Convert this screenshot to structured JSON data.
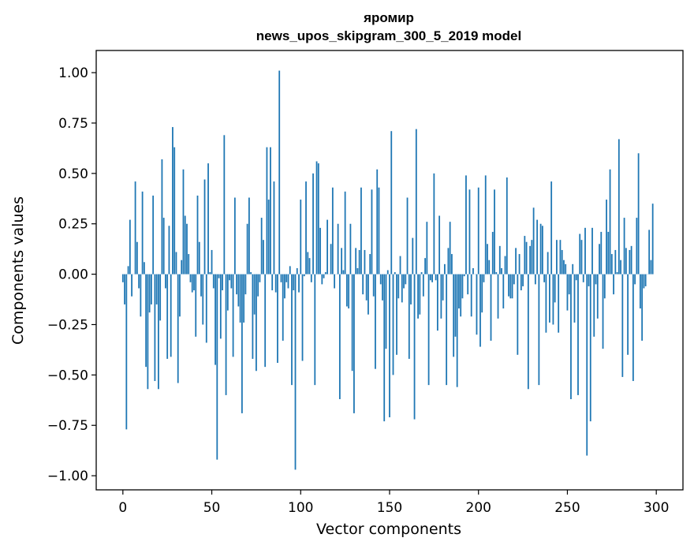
{
  "chart_data": {
    "type": "bar",
    "title": "яромир",
    "subtitle": "news_upos_skipgram_300_5_2019 model",
    "xlabel": "Vector components",
    "ylabel": "Components values",
    "xlim": [
      -15,
      315
    ],
    "ylim": [
      -1.07,
      1.11
    ],
    "xticks": [
      0,
      50,
      100,
      150,
      200,
      250,
      300
    ],
    "yticks": [
      -1.0,
      -0.75,
      -0.5,
      -0.25,
      0.0,
      0.25,
      0.5,
      0.75,
      1.0
    ],
    "ytick_labels": [
      "−1.00",
      "−0.75",
      "−0.50",
      "−0.25",
      "0.00",
      "0.25",
      "0.50",
      "0.75",
      "1.00"
    ],
    "xtick_labels": [
      "0",
      "50",
      "100",
      "150",
      "200",
      "250",
      "300"
    ],
    "bar_color": "#1f77b4",
    "grid": false,
    "values": [
      -0.04,
      -0.15,
      -0.77,
      0.04,
      0.27,
      -0.11,
      0.0,
      0.46,
      0.16,
      -0.07,
      -0.21,
      0.41,
      0.06,
      -0.46,
      -0.57,
      -0.19,
      -0.15,
      0.39,
      -0.53,
      -0.15,
      -0.57,
      -0.23,
      0.57,
      0.28,
      -0.07,
      -0.42,
      0.24,
      -0.41,
      0.73,
      0.63,
      0.11,
      -0.54,
      -0.21,
      0.07,
      0.52,
      0.29,
      0.25,
      0.1,
      -0.04,
      -0.09,
      -0.08,
      -0.31,
      0.39,
      0.16,
      -0.11,
      -0.25,
      0.47,
      -0.34,
      0.55,
      0.01,
      0.12,
      -0.07,
      -0.45,
      -0.92,
      -0.02,
      -0.32,
      -0.08,
      0.69,
      -0.6,
      -0.18,
      -0.03,
      -0.07,
      -0.41,
      0.38,
      -0.1,
      -0.16,
      -0.24,
      -0.69,
      -0.24,
      -0.1,
      0.25,
      0.38,
      0.01,
      -0.42,
      -0.2,
      -0.48,
      -0.11,
      -0.04,
      0.28,
      0.17,
      -0.46,
      0.63,
      0.37,
      0.63,
      -0.08,
      0.46,
      -0.09,
      -0.44,
      1.01,
      -0.04,
      -0.33,
      -0.12,
      -0.04,
      -0.07,
      0.04,
      -0.55,
      -0.08,
      -0.97,
      0.03,
      -0.09,
      0.37,
      -0.43,
      -0.01,
      0.46,
      0.11,
      0.08,
      -0.04,
      0.5,
      -0.55,
      0.56,
      0.55,
      0.23,
      -0.05,
      -0.02,
      0.01,
      0.27,
      0.0,
      0.15,
      0.43,
      -0.07,
      0.0,
      0.25,
      -0.62,
      0.13,
      0.02,
      0.41,
      -0.16,
      -0.17,
      0.25,
      -0.48,
      -0.69,
      0.13,
      0.03,
      0.12,
      0.43,
      -0.1,
      0.12,
      -0.13,
      -0.2,
      0.1,
      0.42,
      -0.11,
      -0.47,
      0.52,
      0.43,
      -0.05,
      -0.13,
      -0.73,
      -0.37,
      0.02,
      -0.71,
      0.71,
      -0.5,
      0.01,
      -0.4,
      -0.12,
      0.09,
      -0.14,
      -0.07,
      -0.05,
      0.38,
      -0.42,
      -0.15,
      0.18,
      -0.72,
      0.72,
      -0.22,
      -0.2,
      0.01,
      -0.11,
      0.08,
      0.26,
      -0.55,
      -0.03,
      -0.04,
      0.5,
      -0.03,
      -0.28,
      0.29,
      -0.22,
      -0.13,
      0.05,
      -0.55,
      0.13,
      0.26,
      0.1,
      -0.41,
      -0.31,
      -0.56,
      -0.17,
      -0.21,
      -0.12,
      -0.01,
      0.49,
      -0.1,
      0.42,
      -0.21,
      0.03,
      0.0,
      -0.3,
      0.43,
      -0.36,
      -0.19,
      -0.04,
      0.49,
      0.15,
      0.07,
      -0.33,
      0.21,
      0.42,
      0.01,
      -0.22,
      0.14,
      0.03,
      -0.17,
      0.09,
      0.48,
      -0.11,
      -0.12,
      -0.12,
      -0.05,
      0.13,
      -0.4,
      0.1,
      -0.08,
      -0.06,
      0.19,
      0.16,
      -0.57,
      0.14,
      0.17,
      0.33,
      -0.05,
      0.27,
      -0.55,
      0.25,
      0.24,
      -0.04,
      -0.29,
      0.11,
      -0.24,
      0.46,
      -0.25,
      -0.14,
      0.17,
      -0.29,
      0.17,
      0.12,
      0.07,
      0.05,
      -0.18,
      -0.1,
      -0.62,
      0.05,
      -0.24,
      -0.03,
      -0.6,
      0.2,
      0.17,
      -0.04,
      0.23,
      -0.9,
      -0.06,
      -0.73,
      0.23,
      -0.31,
      -0.05,
      -0.22,
      0.15,
      0.21,
      -0.37,
      -0.12,
      0.37,
      0.21,
      0.52,
      0.1,
      -0.1,
      0.12,
      0.01,
      0.67,
      0.07,
      -0.51,
      0.28,
      0.13,
      -0.4,
      0.12,
      0.14,
      -0.53,
      -0.05,
      0.28,
      0.6,
      -0.17,
      -0.33,
      -0.07,
      -0.06,
      0.0,
      0.22,
      0.07,
      0.35
    ]
  }
}
